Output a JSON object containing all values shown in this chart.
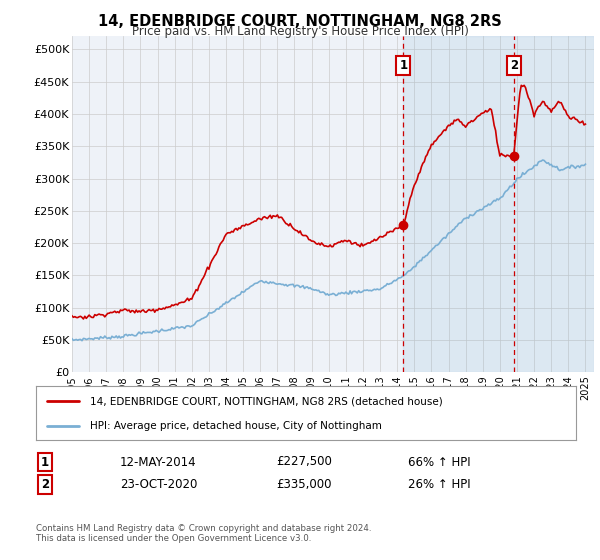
{
  "title": "14, EDENBRIDGE COURT, NOTTINGHAM, NG8 2RS",
  "subtitle": "Price paid vs. HM Land Registry's House Price Index (HPI)",
  "ylabel_ticks": [
    "£0",
    "£50K",
    "£100K",
    "£150K",
    "£200K",
    "£250K",
    "£300K",
    "£350K",
    "£400K",
    "£450K",
    "£500K"
  ],
  "ytick_values": [
    0,
    50000,
    100000,
    150000,
    200000,
    250000,
    300000,
    350000,
    400000,
    450000,
    500000
  ],
  "ylim": [
    0,
    520000
  ],
  "xlim_start": 1995.0,
  "xlim_end": 2025.5,
  "red_line_color": "#cc0000",
  "blue_line_color": "#7aafd4",
  "marker1_year": 2014.36,
  "marker2_year": 2020.81,
  "marker1_label": "1",
  "marker2_label": "2",
  "marker1_value": 227500,
  "marker2_value": 335000,
  "annotation1_date": "12-MAY-2014",
  "annotation1_price": "£227,500",
  "annotation1_hpi": "66% ↑ HPI",
  "annotation2_date": "23-OCT-2020",
  "annotation2_price": "£335,000",
  "annotation2_hpi": "26% ↑ HPI",
  "legend_red": "14, EDENBRIDGE COURT, NOTTINGHAM, NG8 2RS (detached house)",
  "legend_blue": "HPI: Average price, detached house, City of Nottingham",
  "footer": "Contains HM Land Registry data © Crown copyright and database right 2024.\nThis data is licensed under the Open Government Licence v3.0.",
  "background_color": "#ffffff",
  "plot_bg_color": "#eef2f8",
  "grid_color": "#cccccc",
  "xticks": [
    1995,
    1996,
    1997,
    1998,
    1999,
    2000,
    2001,
    2002,
    2003,
    2004,
    2005,
    2006,
    2007,
    2008,
    2009,
    2010,
    2011,
    2012,
    2013,
    2014,
    2015,
    2016,
    2017,
    2018,
    2019,
    2020,
    2021,
    2022,
    2023,
    2024,
    2025
  ]
}
